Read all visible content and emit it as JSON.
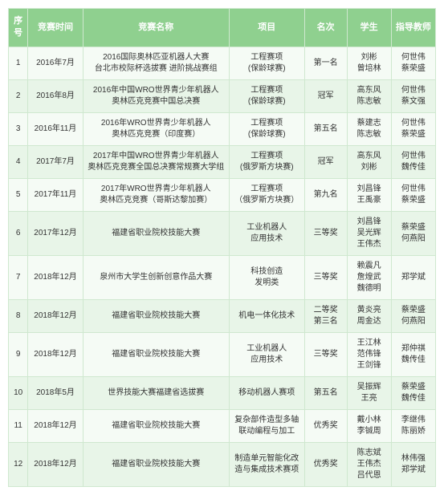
{
  "headers": [
    "序号",
    "竞赛时间",
    "竞赛名称",
    "项目",
    "名次",
    "学生",
    "指导教师"
  ],
  "rows": [
    {
      "idx": "1",
      "time": "2016年7月",
      "name": "2016国际奥林匹亚机器人大赛\n台北市校际杯选拔赛 进阶挑战赛组",
      "proj": "工程赛项\n(保龄球赛)",
      "rank": "第一名",
      "stu": "刘彬\n曾培林",
      "teach": "何世伟\n蔡荣盛"
    },
    {
      "idx": "2",
      "time": "2016年8月",
      "name": "2016年中国WRO世界青少年机器人\n奥林匹克竞赛中国总决赛",
      "proj": "工程赛项\n(保龄球赛)",
      "rank": "冠军",
      "stu": "高东风\n陈志敏",
      "teach": "何世伟\n蔡文强"
    },
    {
      "idx": "3",
      "time": "2016年11月",
      "name": "2016年WRO世界青少年机器人\n奥林匹克竞赛（印度赛）",
      "proj": "工程赛项\n(保龄球赛)",
      "rank": "第五名",
      "stu": "蔡建志\n陈志敏",
      "teach": "何世伟\n蔡荣盛"
    },
    {
      "idx": "4",
      "time": "2017年7月",
      "name": "2017年中国WRO世界青少年机器人\n奥林匹克竞赛全国总决赛常规赛大学组",
      "proj": "工程赛项\n(俄罗斯方块赛)",
      "rank": "冠军",
      "stu": "高东风\n刘彬",
      "teach": "何世伟\n魏传佳"
    },
    {
      "idx": "5",
      "time": "2017年11月",
      "name": "2017年WRO世界青少年机器人\n奥林匹克竞赛（哥斯达黎加赛）",
      "proj": "工程赛项\n（俄罗斯方块赛）",
      "rank": "第九名",
      "stu": "刘昌锋\n王禹豪",
      "teach": "何世伟\n蔡荣盛"
    },
    {
      "idx": "6",
      "time": "2017年12月",
      "name": "福建省职业院校技能大赛",
      "proj": "工业机器人\n应用技术",
      "rank": "三等奖",
      "stu": "刘昌锋\n吴光辉\n王伟杰",
      "teach": "蔡荣盛\n何燕阳"
    },
    {
      "idx": "7",
      "time": "2018年12月",
      "name": "泉州市大学生创新创意作品大赛",
      "proj": "科技创造\n发明类",
      "rank": "三等奖",
      "stu": "赖震凡\n詹煌武\n魏德明",
      "teach": "郑学斌"
    },
    {
      "idx": "8",
      "time": "2018年12月",
      "name": "福建省职业院校技能大赛",
      "proj": "机电一体化技术",
      "rank": "二等奖\n第三名",
      "stu": "黄炎亮\n周金达",
      "teach": "蔡荣盛\n何燕阳"
    },
    {
      "idx": "9",
      "time": "2018年12月",
      "name": "福建省职业院校技能大赛",
      "proj": "工业机器人\n应用技术",
      "rank": "三等奖",
      "stu": "王江林\n范伟锋\n王剑锋",
      "teach": "郑仲祺\n魏传佳"
    },
    {
      "idx": "10",
      "time": "2018年5月",
      "name": "世界技能大赛福建省选拔赛",
      "proj": "移动机器人赛项",
      "rank": "第五名",
      "stu": "吴振辉\n王亮",
      "teach": "蔡荣盛\n魏传佳"
    },
    {
      "idx": "11",
      "time": "2018年12月",
      "name": "福建省职业院校技能大赛",
      "proj": "复杂部件造型多轴\n联动编程与加工",
      "rank": "优秀奖",
      "stu": "戴小林\n李铖周",
      "teach": "李继伟\n陈丽娇"
    },
    {
      "idx": "12",
      "time": "2018年12月",
      "name": "福建省职业院校技能大赛",
      "proj": "制造单元智能化改\n造与集成技术赛项",
      "rank": "优秀奖",
      "stu": "陈志斌\n王伟杰\n吕代恩",
      "teach": "林伟强\n郑学斌"
    }
  ]
}
